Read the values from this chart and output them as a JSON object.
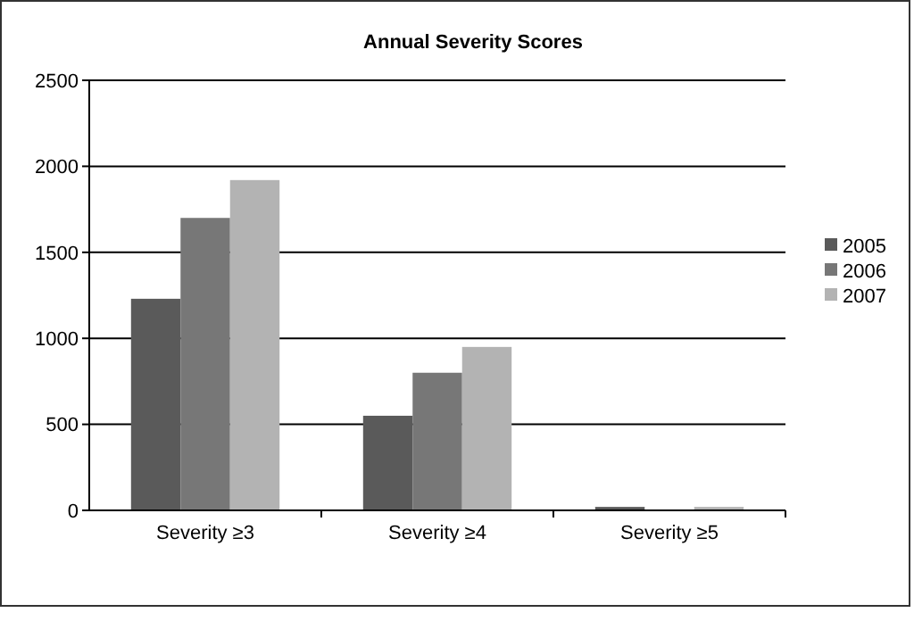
{
  "chart_data": {
    "type": "bar",
    "title": "Annual Severity Scores",
    "categories": [
      "Severity ≥3",
      "Severity ≥4",
      "Severity ≥5"
    ],
    "series": [
      {
        "name": "2005",
        "color": "#5a5a5a",
        "values": [
          1230,
          550,
          20
        ]
      },
      {
        "name": "2006",
        "color": "#777777",
        "values": [
          1700,
          800,
          0
        ]
      },
      {
        "name": "2007",
        "color": "#b3b3b3",
        "values": [
          1920,
          950,
          20
        ]
      }
    ],
    "ylim": [
      0,
      2500
    ],
    "yticks": [
      0,
      500,
      1000,
      1500,
      2000,
      2500
    ],
    "grid": "y",
    "legend": "right"
  }
}
